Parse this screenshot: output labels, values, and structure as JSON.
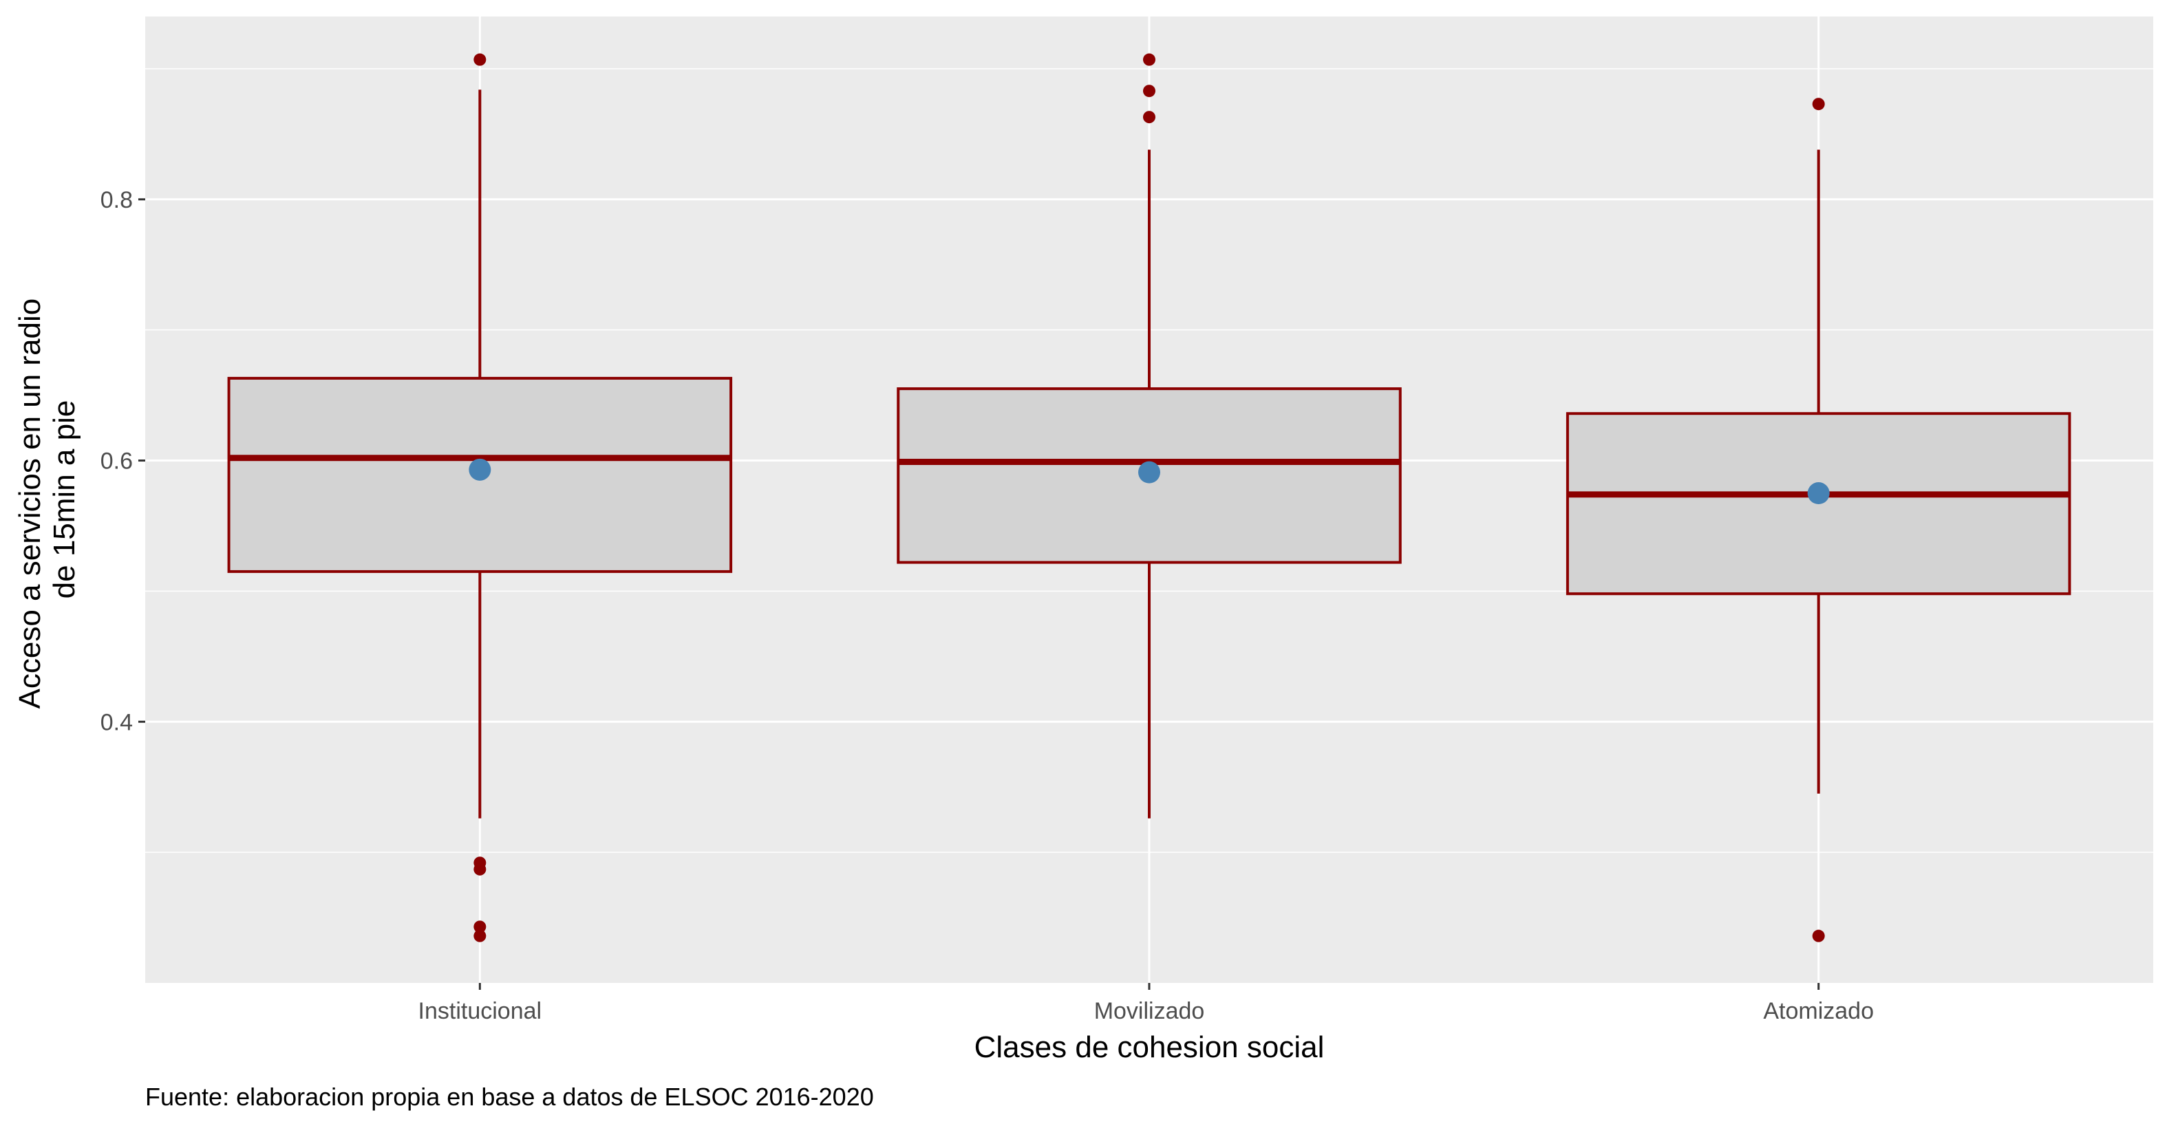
{
  "chart_data": {
    "type": "boxplot",
    "xlabel": "Clases de cohesion social",
    "ylabel_lines": [
      "Acceso a servicios en un radio",
      "de 15min a pie"
    ],
    "caption": "Fuente: elaboracion propia en base a datos de ELSOC 2016-2020",
    "ylim": [
      0.2,
      0.94
    ],
    "yticks": [
      0.4,
      0.6,
      0.8
    ],
    "ytick_labels": [
      "0.4",
      "0.6",
      "0.8"
    ],
    "grid": true,
    "categories": [
      "Institucional",
      "Movilizado",
      "Atomizado"
    ],
    "boxes": [
      {
        "category": "Institucional",
        "whisker_low": 0.326,
        "q1": 0.515,
        "median": 0.602,
        "q3": 0.663,
        "whisker_high": 0.884,
        "mean": 0.593,
        "outliers": [
          0.907,
          0.292,
          0.287,
          0.243,
          0.236
        ]
      },
      {
        "category": "Movilizado",
        "whisker_low": 0.326,
        "q1": 0.522,
        "median": 0.599,
        "q3": 0.655,
        "whisker_high": 0.838,
        "mean": 0.591,
        "outliers": [
          0.907,
          0.883,
          0.863
        ]
      },
      {
        "category": "Atomizado",
        "whisker_low": 0.345,
        "q1": 0.498,
        "median": 0.574,
        "q3": 0.636,
        "whisker_high": 0.838,
        "mean": 0.575,
        "outliers": [
          0.873,
          0.236
        ]
      }
    ],
    "colors": {
      "panel_bg": "#ebebeb",
      "grid": "#ffffff",
      "box_fill": "#d3d3d3",
      "box_line": "#8b0000",
      "outlier": "#8b0000",
      "mean_point": "#4682b4"
    }
  }
}
